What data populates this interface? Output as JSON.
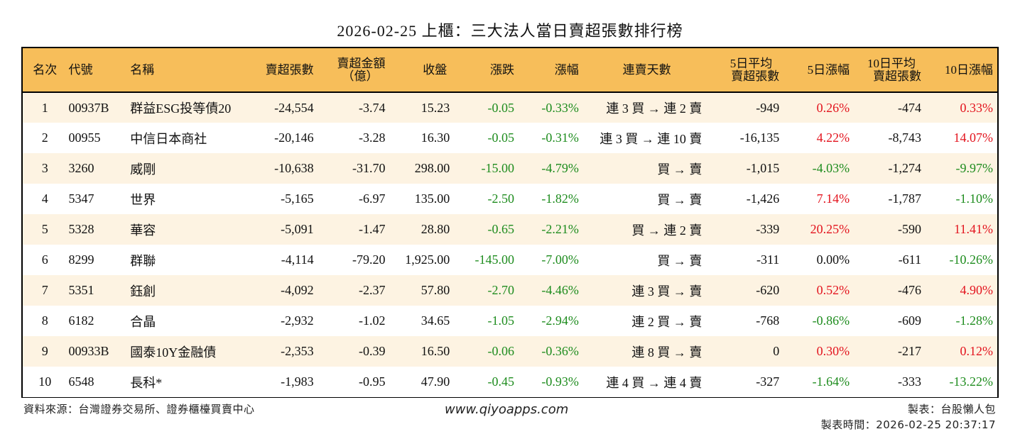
{
  "title": "2026-02-25 上櫃：三大法人當日賣超張數排行榜",
  "colors": {
    "header_bg": "#F7BE5A",
    "stripe_bg": "#FDF3E2",
    "up": "#E3141E",
    "down": "#1E8C1E",
    "border": "#000000"
  },
  "table": {
    "headers": {
      "rank": "名次",
      "code": "代號",
      "name": "名稱",
      "net_sell_lots": "賣超張數",
      "net_sell_amount_line1": "賣超金額",
      "net_sell_amount_line2": "（億）",
      "close": "收盤",
      "change": "漲跌",
      "change_pct": "漲幅",
      "streak": "連賣天數",
      "avg5_line1": "5日平均",
      "avg5_line2": "賣超張數",
      "pct5": "5日漲幅",
      "avg10_line1": "10日平均",
      "avg10_line2": "賣超張數",
      "pct10": "10日漲幅"
    },
    "rows": [
      {
        "rank": "1",
        "code": "00937B",
        "name": "群益ESG投等債20",
        "net_sell_lots": "-24,554",
        "net_sell_amount": "-3.74",
        "close": "15.23",
        "change": "-0.05",
        "change_pct": "-0.33%",
        "streak": "連 3 買 → 連 2 賣",
        "avg5": "-949",
        "pct5": "0.26%",
        "pct5_dir": "red",
        "avg10": "-474",
        "pct10": "0.33%",
        "pct10_dir": "red"
      },
      {
        "rank": "2",
        "code": "00955",
        "name": "中信日本商社",
        "net_sell_lots": "-20,146",
        "net_sell_amount": "-3.28",
        "close": "16.30",
        "change": "-0.05",
        "change_pct": "-0.31%",
        "streak": "連 3 買 → 連 10 賣",
        "avg5": "-16,135",
        "pct5": "4.22%",
        "pct5_dir": "red",
        "avg10": "-8,743",
        "pct10": "14.07%",
        "pct10_dir": "red"
      },
      {
        "rank": "3",
        "code": "3260",
        "name": "威剛",
        "net_sell_lots": "-10,638",
        "net_sell_amount": "-31.70",
        "close": "298.00",
        "change": "-15.00",
        "change_pct": "-4.79%",
        "streak": "買 → 賣",
        "avg5": "-1,015",
        "pct5": "-4.03%",
        "pct5_dir": "green",
        "avg10": "-1,274",
        "pct10": "-9.97%",
        "pct10_dir": "green"
      },
      {
        "rank": "4",
        "code": "5347",
        "name": "世界",
        "net_sell_lots": "-5,165",
        "net_sell_amount": "-6.97",
        "close": "135.00",
        "change": "-2.50",
        "change_pct": "-1.82%",
        "streak": "買 → 賣",
        "avg5": "-1,426",
        "pct5": "7.14%",
        "pct5_dir": "red",
        "avg10": "-1,787",
        "pct10": "-1.10%",
        "pct10_dir": "green"
      },
      {
        "rank": "5",
        "code": "5328",
        "name": "華容",
        "net_sell_lots": "-5,091",
        "net_sell_amount": "-1.47",
        "close": "28.80",
        "change": "-0.65",
        "change_pct": "-2.21%",
        "streak": "買 → 連 2 賣",
        "avg5": "-339",
        "pct5": "20.25%",
        "pct5_dir": "red",
        "avg10": "-590",
        "pct10": "11.41%",
        "pct10_dir": "red"
      },
      {
        "rank": "6",
        "code": "8299",
        "name": "群聯",
        "net_sell_lots": "-4,114",
        "net_sell_amount": "-79.20",
        "close": "1,925.00",
        "change": "-145.00",
        "change_pct": "-7.00%",
        "streak": "買 → 賣",
        "avg5": "-311",
        "pct5": "0.00%",
        "pct5_dir": "black",
        "avg10": "-611",
        "pct10": "-10.26%",
        "pct10_dir": "green"
      },
      {
        "rank": "7",
        "code": "5351",
        "name": "鈺創",
        "net_sell_lots": "-4,092",
        "net_sell_amount": "-2.37",
        "close": "57.80",
        "change": "-2.70",
        "change_pct": "-4.46%",
        "streak": "連 3 買 → 賣",
        "avg5": "-620",
        "pct5": "0.52%",
        "pct5_dir": "red",
        "avg10": "-476",
        "pct10": "4.90%",
        "pct10_dir": "red"
      },
      {
        "rank": "8",
        "code": "6182",
        "name": "合晶",
        "net_sell_lots": "-2,932",
        "net_sell_amount": "-1.02",
        "close": "34.65",
        "change": "-1.05",
        "change_pct": "-2.94%",
        "streak": "連 2 買 → 賣",
        "avg5": "-768",
        "pct5": "-0.86%",
        "pct5_dir": "green",
        "avg10": "-609",
        "pct10": "-1.28%",
        "pct10_dir": "green"
      },
      {
        "rank": "9",
        "code": "00933B",
        "name": "國泰10Y金融債",
        "net_sell_lots": "-2,353",
        "net_sell_amount": "-0.39",
        "close": "16.50",
        "change": "-0.06",
        "change_pct": "-0.36%",
        "streak": "連 8 買 → 賣",
        "avg5": "0",
        "pct5": "0.30%",
        "pct5_dir": "red",
        "avg10": "-217",
        "pct10": "0.12%",
        "pct10_dir": "red"
      },
      {
        "rank": "10",
        "code": "6548",
        "name": "長科*",
        "net_sell_lots": "-1,983",
        "net_sell_amount": "-0.95",
        "close": "47.90",
        "change": "-0.45",
        "change_pct": "-0.93%",
        "streak": "連 4 買 → 連 4 賣",
        "avg5": "-327",
        "pct5": "-1.64%",
        "pct5_dir": "green",
        "avg10": "-333",
        "pct10": "-13.22%",
        "pct10_dir": "green"
      }
    ]
  },
  "footer": {
    "source": "資料來源：台灣證券交易所、證券櫃檯買賣中心",
    "url": "www.qiyoapps.com",
    "maker": "製表：台股懶人包",
    "made_time": "製表時間：2026-02-25 20:37:17"
  }
}
